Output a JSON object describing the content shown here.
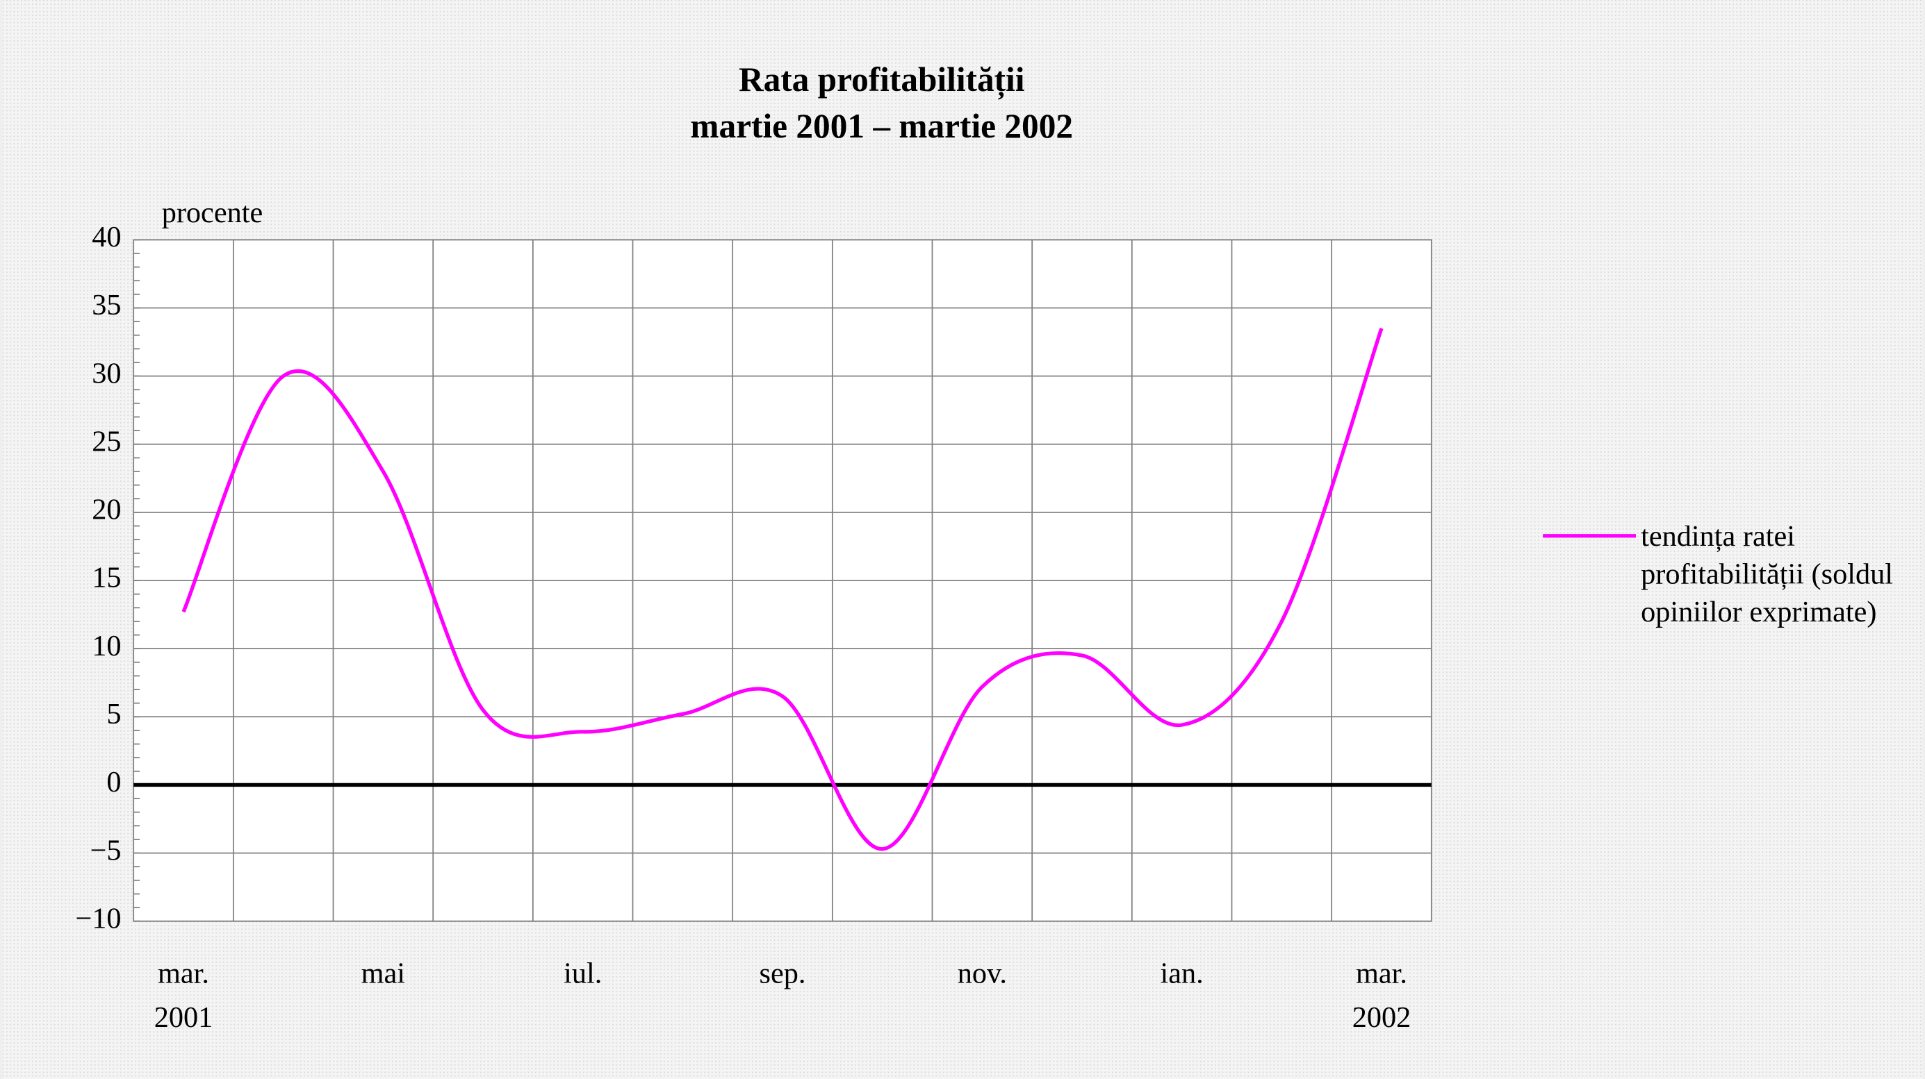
{
  "chart_data": {
    "type": "line",
    "title": "Rata profitabilității",
    "subtitle": "martie 2001 – martie 2002",
    "y_axis_label": "procente",
    "categories": [
      "mar.",
      null,
      "mai",
      null,
      "iul.",
      null,
      "sep.",
      null,
      "nov.",
      null,
      "ian.",
      null,
      "mar."
    ],
    "x_sublabels": [
      "2001",
      null,
      null,
      null,
      null,
      null,
      null,
      null,
      null,
      null,
      null,
      null,
      "2002"
    ],
    "series": [
      {
        "name": "tendința ratei profitabilității (soldul opiniilor exprimate)",
        "color": "#ff00ff",
        "values": [
          12.7,
          30,
          23,
          5.5,
          3.9,
          5.2,
          6.5,
          -4.7,
          7.2,
          9.5,
          4.4,
          12,
          33.5
        ]
      }
    ],
    "ylim": [
      -10,
      40
    ],
    "yticks": [
      {
        "value": -10,
        "label": "−10"
      },
      {
        "value": -5,
        "label": "−5"
      },
      0,
      5,
      10,
      15,
      20,
      25,
      30,
      35,
      40
    ],
    "grid": true,
    "legend": "right"
  }
}
